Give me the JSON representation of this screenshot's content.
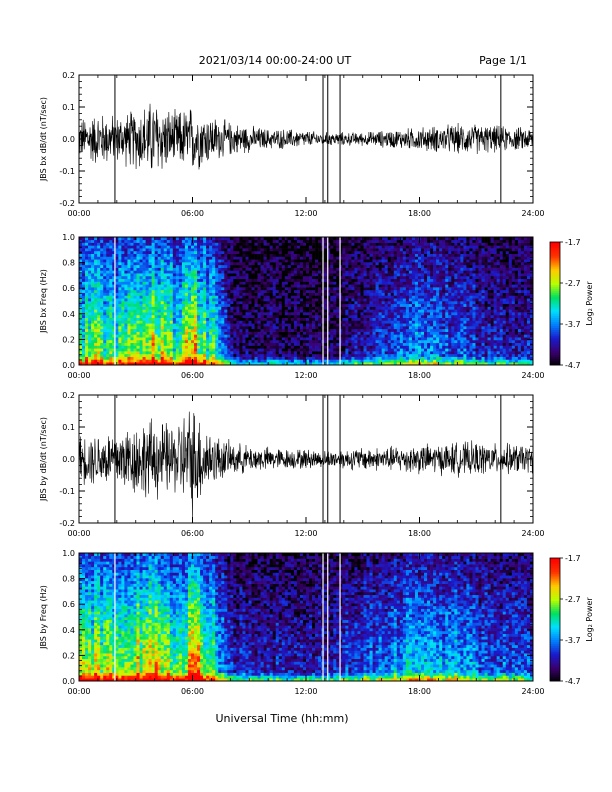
{
  "header": {
    "title": "2021/03/14  00:00-24:00 UT",
    "page": "Page 1/1"
  },
  "footer": {
    "xlabel": "Universal Time (hh:mm)"
  },
  "colors": {
    "trace": "#000000",
    "gap_line": "#ffffff",
    "spectrogram_scale": [
      "#000000",
      "#3a006e",
      "#1a1acc",
      "#0080ff",
      "#00e0ff",
      "#00e060",
      "#b8ff00",
      "#ffcc00",
      "#ff3300",
      "#ff0000"
    ]
  },
  "chart_data": [
    {
      "type": "line",
      "ylabel": "JBS bx dB/dt (nT/sec)",
      "xlim": [
        0,
        24
      ],
      "ylim": [
        -0.2,
        0.2
      ],
      "xticks": [
        "00:00",
        "06:00",
        "12:00",
        "18:00",
        "24:00"
      ],
      "yticks": [
        "-0.2",
        "-0.1",
        "0.0",
        "0.1",
        "0.2"
      ],
      "series": [
        {
          "x": [
            0,
            1,
            2,
            3,
            4,
            5,
            6,
            7,
            8,
            9,
            10,
            11,
            12,
            13,
            14,
            15,
            16,
            17,
            18,
            19,
            20,
            21,
            22,
            23,
            24
          ],
          "envelope": [
            0.06,
            0.08,
            0.07,
            0.09,
            0.12,
            0.08,
            0.1,
            0.07,
            0.05,
            0.04,
            0.03,
            0.03,
            0.025,
            0.02,
            0.02,
            0.02,
            0.025,
            0.03,
            0.035,
            0.04,
            0.045,
            0.045,
            0.04,
            0.035,
            0.035
          ]
        }
      ],
      "spikes_h": [
        1.9,
        12.9,
        13.15,
        13.8,
        22.3
      ]
    },
    {
      "type": "heatmap",
      "ylabel": "JBS bx Freq (Hz)",
      "xlim": [
        0,
        24
      ],
      "ylim": [
        0,
        1.0
      ],
      "xticks": [
        "00:00",
        "06:00",
        "12:00",
        "18:00",
        "24:00"
      ],
      "yticks": [
        "0.0",
        "0.2",
        "0.4",
        "0.6",
        "0.8",
        "1.0"
      ],
      "colorbar": {
        "label": "Log₂ Power",
        "ticks": [
          "-1.7",
          "-2.7",
          "-3.7",
          "-4.7"
        ],
        "range": [
          -4.7,
          -1.7
        ]
      },
      "gaps_h": [
        1.9,
        12.9,
        13.15,
        13.8
      ],
      "activity": [
        0.6,
        0.65,
        0.55,
        0.7,
        0.75,
        0.6,
        0.8,
        0.55,
        0.15,
        0.1,
        0.12,
        0.1,
        0.1,
        0.1,
        0.15,
        0.2,
        0.25,
        0.3,
        0.4,
        0.35,
        0.3,
        0.25,
        0.2,
        0.2,
        0.2
      ]
    },
    {
      "type": "line",
      "ylabel": "JBS by dB/dt (nT/sec)",
      "xlim": [
        0,
        24
      ],
      "ylim": [
        -0.2,
        0.2
      ],
      "xticks": [
        "00:00",
        "06:00",
        "12:00",
        "18:00",
        "24:00"
      ],
      "yticks": [
        "-0.2",
        "-0.1",
        "0.0",
        "0.1",
        "0.2"
      ],
      "series": [
        {
          "x": [
            0,
            1,
            2,
            3,
            4,
            5,
            6,
            7,
            8,
            9,
            10,
            11,
            12,
            13,
            14,
            15,
            16,
            17,
            18,
            19,
            20,
            21,
            22,
            23,
            24
          ],
          "envelope": [
            0.07,
            0.08,
            0.09,
            0.11,
            0.12,
            0.1,
            0.17,
            0.08,
            0.05,
            0.04,
            0.035,
            0.03,
            0.03,
            0.025,
            0.03,
            0.035,
            0.035,
            0.04,
            0.045,
            0.045,
            0.05,
            0.05,
            0.045,
            0.045,
            0.04
          ]
        }
      ],
      "spikes_h": [
        1.9,
        12.9,
        13.15,
        13.8,
        22.3
      ]
    },
    {
      "type": "heatmap",
      "ylabel": "JBS by Freq (Hz)",
      "xlim": [
        0,
        24
      ],
      "ylim": [
        0,
        1.0
      ],
      "xticks": [
        "00:00",
        "06:00",
        "12:00",
        "18:00",
        "24:00"
      ],
      "yticks": [
        "0.0",
        "0.2",
        "0.4",
        "0.6",
        "0.8",
        "1.0"
      ],
      "colorbar": {
        "label": "Log₂ Power",
        "ticks": [
          "-1.7",
          "-2.7",
          "-3.7",
          "-4.7"
        ],
        "range": [
          -4.7,
          -1.7
        ]
      },
      "gaps_h": [
        1.9,
        12.9,
        13.15,
        13.8
      ],
      "activity": [
        0.65,
        0.7,
        0.6,
        0.75,
        0.8,
        0.65,
        0.9,
        0.6,
        0.25,
        0.2,
        0.22,
        0.2,
        0.2,
        0.2,
        0.25,
        0.3,
        0.35,
        0.4,
        0.5,
        0.45,
        0.4,
        0.35,
        0.3,
        0.3,
        0.3
      ]
    }
  ]
}
